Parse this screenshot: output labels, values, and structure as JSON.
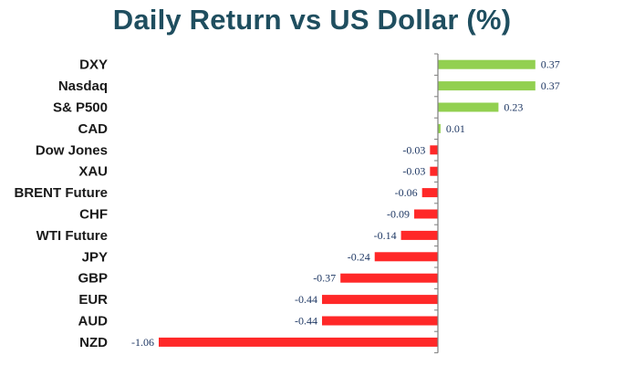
{
  "chart_data": {
    "type": "bar",
    "orientation": "horizontal",
    "title": "Daily Return vs US Dollar (%)",
    "categories": [
      "DXY",
      "Nasdaq",
      "S& P500",
      "CAD",
      "Dow Jones",
      "XAU",
      "BRENT Future",
      "CHF",
      "WTI Future",
      "JPY",
      "GBP",
      "EUR",
      "AUD",
      "NZD"
    ],
    "values": [
      0.37,
      0.37,
      0.23,
      0.01,
      -0.03,
      -0.03,
      -0.06,
      -0.09,
      -0.14,
      -0.24,
      -0.37,
      -0.44,
      -0.44,
      -1.06
    ],
    "value_labels": [
      "0.37",
      "0.37",
      "0.23",
      "0.01",
      "-0.03",
      "-0.03",
      "-0.06",
      "-0.09",
      "-0.14",
      "-0.24",
      "-0.37",
      "-0.44",
      "-0.44",
      "-1.06"
    ],
    "xlim": [
      -1.06,
      0.37
    ],
    "grid": false,
    "legend": "none",
    "colors": {
      "positive": "#92d050",
      "negative": "#ff2828",
      "title": "#1f4e5f",
      "axis": "#7f7f7f"
    }
  }
}
